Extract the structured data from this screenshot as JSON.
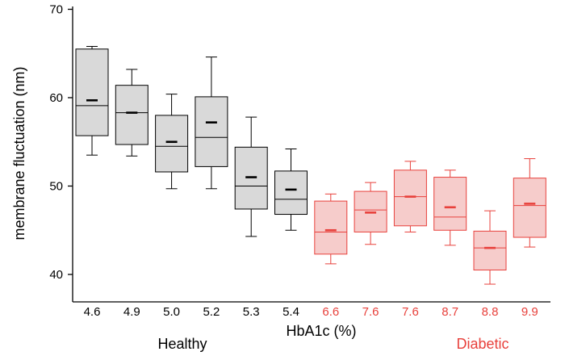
{
  "chart_data": {
    "type": "box",
    "title": "",
    "xlabel": "HbA1c (%)",
    "ylabel": "membrane fluctuation (nm)",
    "ylim": [
      37,
      70
    ],
    "yticks": [
      40,
      50,
      60,
      70
    ],
    "grid": false,
    "categories": [
      "4.6",
      "4.9",
      "5.0",
      "5.2",
      "5.3",
      "5.4",
      "6.6",
      "7.6",
      "7.6",
      "8.7",
      "8.8",
      "9.9"
    ],
    "groups": [
      {
        "label": "Healthy",
        "color": "#000000",
        "fill": "#d9d9d9",
        "indices": [
          0,
          1,
          2,
          3,
          4,
          5
        ]
      },
      {
        "label": "Diabetic",
        "color": "#e8413c",
        "fill": "#f6cccb",
        "indices": [
          6,
          7,
          8,
          9,
          10,
          11
        ]
      }
    ],
    "boxes": [
      {
        "whisker_low": 53.5,
        "q1": 55.7,
        "median": 59.1,
        "q3": 65.5,
        "whisker_high": 65.8,
        "mean": 59.7
      },
      {
        "whisker_low": 53.4,
        "q1": 54.7,
        "median": 58.3,
        "q3": 61.4,
        "whisker_high": 63.2,
        "mean": 58.3
      },
      {
        "whisker_low": 49.7,
        "q1": 51.6,
        "median": 54.5,
        "q3": 58.0,
        "whisker_high": 60.4,
        "mean": 55.0
      },
      {
        "whisker_low": 49.7,
        "q1": 52.2,
        "median": 55.5,
        "q3": 60.1,
        "whisker_high": 64.6,
        "mean": 57.2
      },
      {
        "whisker_low": 44.3,
        "q1": 47.4,
        "median": 50.0,
        "q3": 54.4,
        "whisker_high": 57.8,
        "mean": 51.0
      },
      {
        "whisker_low": 45.0,
        "q1": 46.8,
        "median": 48.5,
        "q3": 51.7,
        "whisker_high": 54.2,
        "mean": 49.6
      },
      {
        "whisker_low": 41.2,
        "q1": 42.3,
        "median": 44.8,
        "q3": 48.3,
        "whisker_high": 49.1,
        "mean": 45.0
      },
      {
        "whisker_low": 43.4,
        "q1": 44.8,
        "median": 47.3,
        "q3": 49.4,
        "whisker_high": 50.4,
        "mean": 47.0
      },
      {
        "whisker_low": 44.8,
        "q1": 45.5,
        "median": 48.8,
        "q3": 51.8,
        "whisker_high": 52.8,
        "mean": 48.8
      },
      {
        "whisker_low": 43.3,
        "q1": 45.0,
        "median": 46.5,
        "q3": 51.0,
        "whisker_high": 51.8,
        "mean": 47.6
      },
      {
        "whisker_low": 38.9,
        "q1": 40.5,
        "median": 43.0,
        "q3": 44.9,
        "whisker_high": 47.2,
        "mean": 43.0
      },
      {
        "whisker_low": 43.1,
        "q1": 44.2,
        "median": 47.8,
        "q3": 50.9,
        "whisker_high": 53.1,
        "mean": 48.0
      }
    ]
  }
}
